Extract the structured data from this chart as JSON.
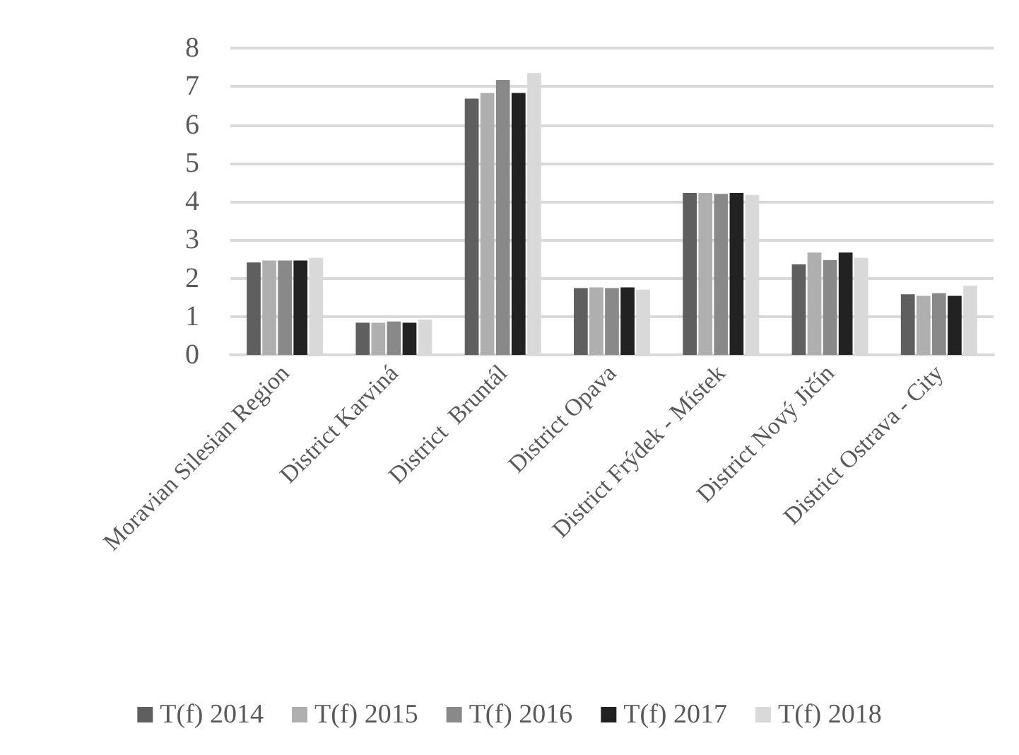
{
  "chart_data": {
    "type": "bar",
    "categories": [
      "Moravian Silesian Region",
      "District Karviná",
      "District  Bruntál",
      "District Opava",
      "District Frýdek - Místek",
      "District Nový Jičín",
      "District Ostrava - City"
    ],
    "series": [
      {
        "name": "T(f) 2014",
        "color": "#5f5f5f",
        "values": [
          2.41,
          0.84,
          6.68,
          1.74,
          4.22,
          2.36,
          1.58
        ]
      },
      {
        "name": "T(f) 2015",
        "color": "#afafaf",
        "values": [
          2.46,
          0.84,
          6.83,
          1.76,
          4.22,
          2.67,
          1.54
        ]
      },
      {
        "name": "T(f) 2016",
        "color": "#898989",
        "values": [
          2.46,
          0.87,
          7.17,
          1.74,
          4.2,
          2.47,
          1.61
        ]
      },
      {
        "name": "T(f) 2017",
        "color": "#222222",
        "values": [
          2.46,
          0.84,
          6.83,
          1.76,
          4.22,
          2.67,
          1.54
        ]
      },
      {
        "name": "T(f) 2018",
        "color": "#d9d9d9",
        "values": [
          2.53,
          0.92,
          7.35,
          1.7,
          4.17,
          2.53,
          1.8
        ]
      }
    ],
    "ylim": [
      0,
      8
    ],
    "yticks": [
      0,
      1,
      2,
      3,
      4,
      5,
      6,
      7,
      8
    ],
    "grid": true,
    "legend": "bottom"
  }
}
